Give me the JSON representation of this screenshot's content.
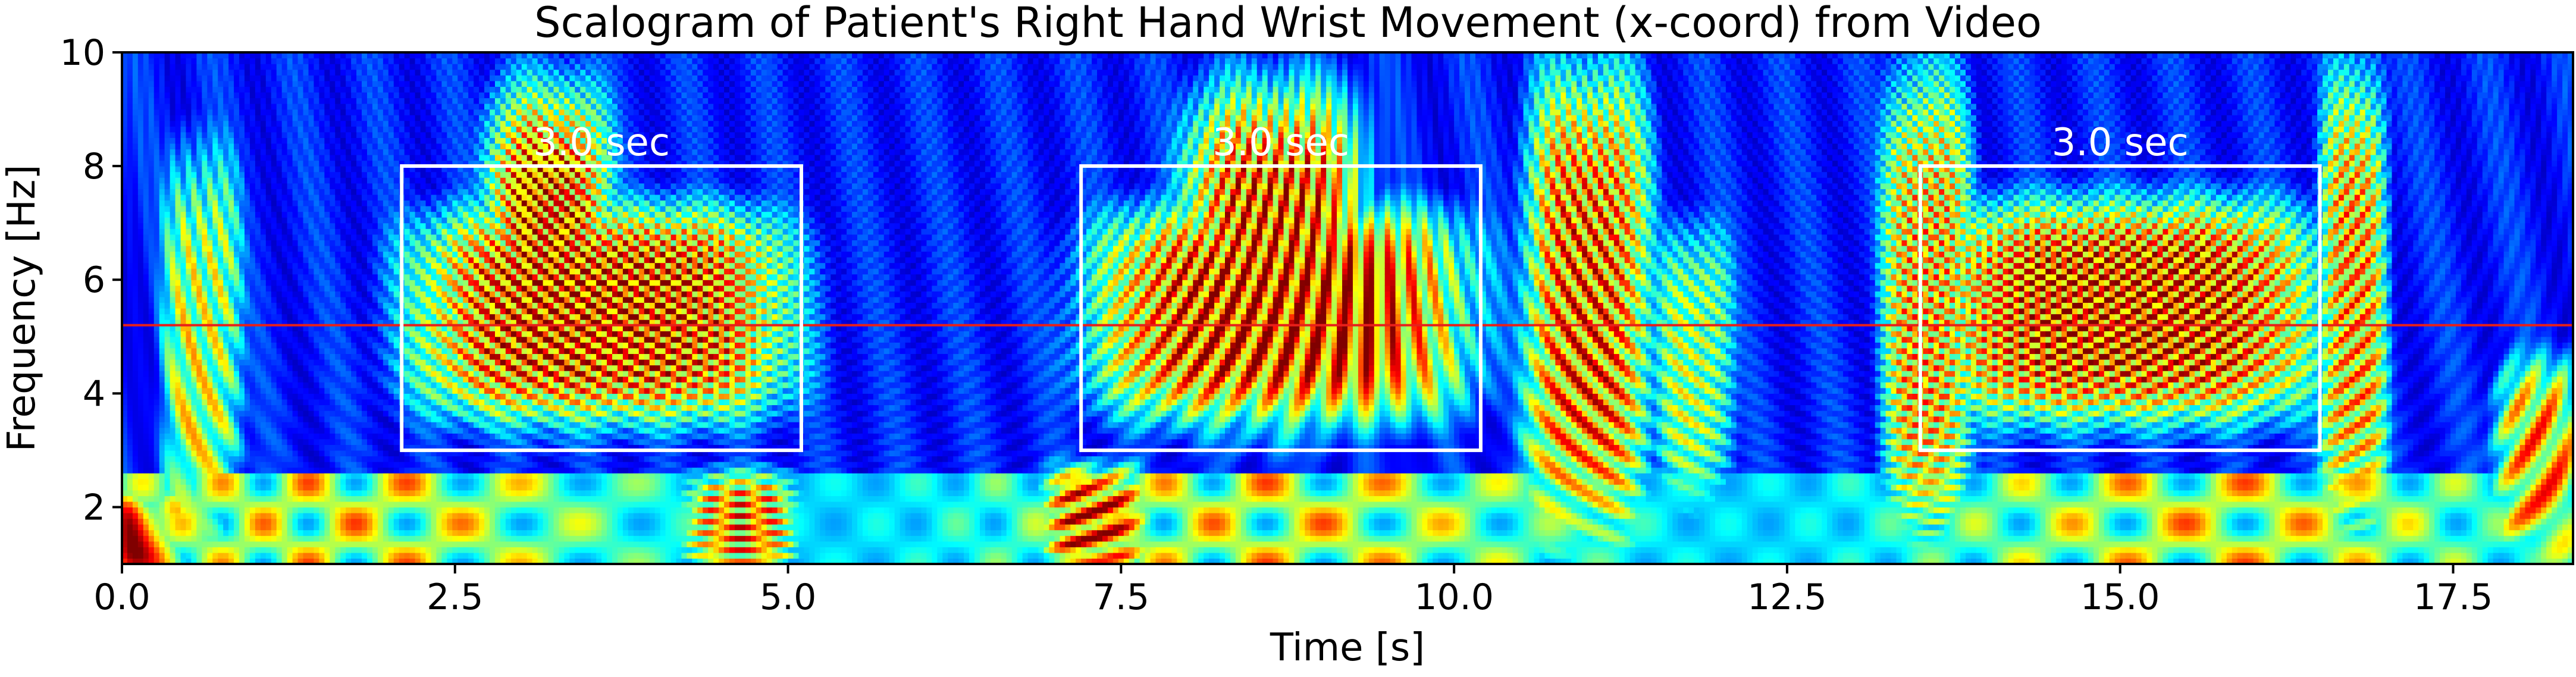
{
  "chart_data": {
    "type": "heatmap",
    "title": "Scalogram of Patient's Right Hand Wrist Movement (x-coord) from Video",
    "xlabel": "Time [s]",
    "ylabel": "Frequency [Hz]",
    "xlim": [
      0,
      18.4
    ],
    "ylim": [
      1,
      10
    ],
    "x_ticks": [
      "0.0",
      "2.5",
      "5.0",
      "7.5",
      "10.0",
      "12.5",
      "15.0",
      "17.5"
    ],
    "y_ticks": [
      "2",
      "4",
      "6",
      "8",
      "10"
    ],
    "colormap": "jet",
    "grid": false,
    "reference_line": {
      "frequency_hz": 5.2,
      "color": "#e8201a"
    },
    "box_color": "#ffffff",
    "boxes": [
      {
        "label": "3.0 sec",
        "t_start": 2.1,
        "t_end": 5.1,
        "f_low": 3.0,
        "f_high": 8.0
      },
      {
        "label": "3.0 sec",
        "t_start": 7.2,
        "t_end": 10.2,
        "f_low": 3.0,
        "f_high": 8.0
      },
      {
        "label": "3.0 sec",
        "t_start": 13.5,
        "t_end": 16.5,
        "f_low": 3.0,
        "f_high": 8.0
      }
    ],
    "energy_bursts": [
      {
        "t_start": 0.4,
        "t_end": 0.8,
        "f_low": 1.0,
        "f_high": 8.5,
        "level": 0.65
      },
      {
        "t_start": 2.1,
        "t_end": 5.1,
        "f_low": 3.6,
        "f_high": 7.2,
        "level": 1.0
      },
      {
        "t_start": 2.8,
        "t_end": 3.6,
        "f_low": 3.5,
        "f_high": 9.5,
        "level": 0.95
      },
      {
        "t_start": 7.2,
        "t_end": 10.2,
        "f_low": 3.6,
        "f_high": 7.2,
        "level": 1.0
      },
      {
        "t_start": 8.0,
        "t_end": 9.3,
        "f_low": 3.4,
        "f_high": 9.5,
        "level": 0.95
      },
      {
        "t_start": 10.6,
        "t_end": 11.4,
        "f_low": 1.0,
        "f_high": 10.0,
        "level": 0.9
      },
      {
        "t_start": 11.6,
        "t_end": 12.0,
        "f_low": 2.0,
        "f_high": 7.0,
        "level": 0.6
      },
      {
        "t_start": 13.5,
        "t_end": 16.6,
        "f_low": 3.6,
        "f_high": 7.3,
        "level": 1.0
      },
      {
        "t_start": 13.3,
        "t_end": 13.8,
        "f_low": 1.0,
        "f_high": 10.0,
        "level": 0.8
      },
      {
        "t_start": 16.6,
        "t_end": 16.9,
        "f_low": 1.0,
        "f_high": 10.0,
        "level": 0.8
      },
      {
        "t_start": 17.9,
        "t_end": 18.4,
        "f_low": 1.0,
        "f_high": 4.5,
        "level": 0.8
      },
      {
        "t_start": 0.0,
        "t_end": 0.4,
        "f_low": 1.0,
        "f_high": 2.0,
        "level": 0.95
      },
      {
        "t_start": 7.0,
        "t_end": 7.6,
        "f_low": 1.0,
        "f_high": 2.5,
        "level": 0.95
      },
      {
        "t_start": 4.3,
        "t_end": 5.0,
        "f_low": 1.0,
        "f_high": 2.4,
        "level": 0.85
      }
    ]
  }
}
